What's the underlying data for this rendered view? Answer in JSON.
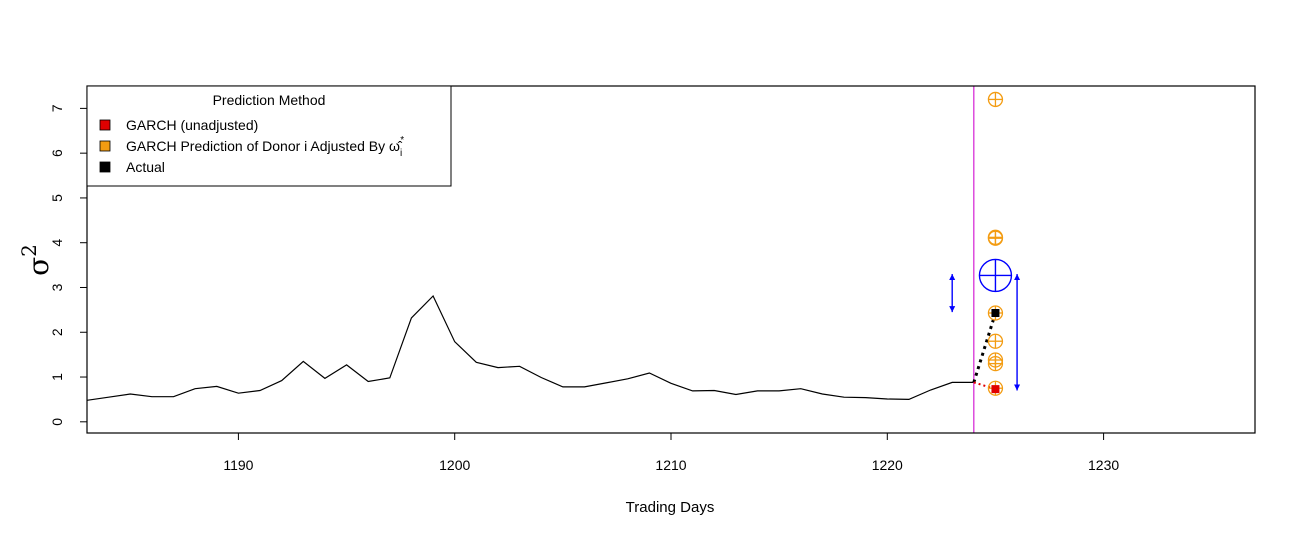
{
  "chart_data": {
    "type": "line",
    "title": "",
    "xlabel": "Trading Days",
    "ylabel": "σ",
    "ylabel_superscript": "2",
    "xlim": [
      1183,
      1237
    ],
    "ylim": [
      -0.25,
      7.5
    ],
    "xticks": [
      1190,
      1200,
      1210,
      1220,
      1230
    ],
    "yticks": [
      0,
      1,
      2,
      3,
      4,
      5,
      6,
      7
    ],
    "grid": false,
    "legend": {
      "title": "Prediction Method",
      "placement": "top-left",
      "entries": [
        {
          "label": "GARCH (unadjusted)",
          "color": "#e00000"
        },
        {
          "label": "GARCH Prediction of Donor i Adjusted By ",
          "color": "#f39c12"
        },
        {
          "label": "Actual",
          "color": "#000000"
        }
      ],
      "omega_symbol": "ω̂",
      "omega_sub": "i",
      "omega_sup": "*"
    },
    "series": [
      {
        "name": "",
        "color": "#000000",
        "x": [
          1183,
          1184,
          1185,
          1186,
          1187,
          1188,
          1189,
          1190,
          1191,
          1192,
          1193,
          1194,
          1195,
          1196,
          1197,
          1198,
          1199,
          1200,
          1201,
          1202,
          1203,
          1204,
          1205,
          1206,
          1207,
          1208,
          1209,
          1210,
          1211,
          1212,
          1213,
          1214,
          1215,
          1216,
          1217,
          1218,
          1219,
          1220,
          1221,
          1222,
          1223,
          1224
        ],
        "y": [
          0.48,
          0.55,
          0.62,
          0.56,
          0.56,
          0.74,
          0.79,
          0.64,
          0.7,
          0.92,
          1.35,
          0.97,
          1.27,
          0.9,
          0.98,
          2.32,
          2.81,
          1.79,
          1.33,
          1.21,
          1.24,
          0.99,
          0.78,
          0.78,
          0.87,
          0.96,
          1.09,
          0.86,
          0.69,
          0.7,
          0.61,
          0.69,
          0.69,
          0.74,
          0.62,
          0.55,
          0.54,
          0.51,
          0.5,
          0.71,
          0.88,
          0.88
        ]
      }
    ],
    "vertical_line": {
      "x": 1224,
      "color": "#d41fd4"
    },
    "adjusted_predictions": {
      "x": 1225,
      "y": [
        7.2,
        4.1,
        4.12,
        2.43,
        1.8,
        1.3,
        1.38,
        0.75
      ],
      "color": "#f39c12"
    },
    "aggregate_prediction": {
      "x": 1225,
      "y": 3.27,
      "color": "#0000ff"
    },
    "garch_unadjusted": {
      "x": 1225,
      "y": 0.73,
      "color": "#e00000"
    },
    "actual": {
      "x": 1225,
      "y": 2.43,
      "color": "#000000"
    },
    "interval_left": {
      "x": 1223,
      "y_low": 2.45,
      "y_high": 3.3,
      "color": "#0000ff"
    },
    "interval_right": {
      "x": 1226,
      "y_low": 0.7,
      "y_high": 3.3,
      "color": "#0000ff"
    }
  }
}
